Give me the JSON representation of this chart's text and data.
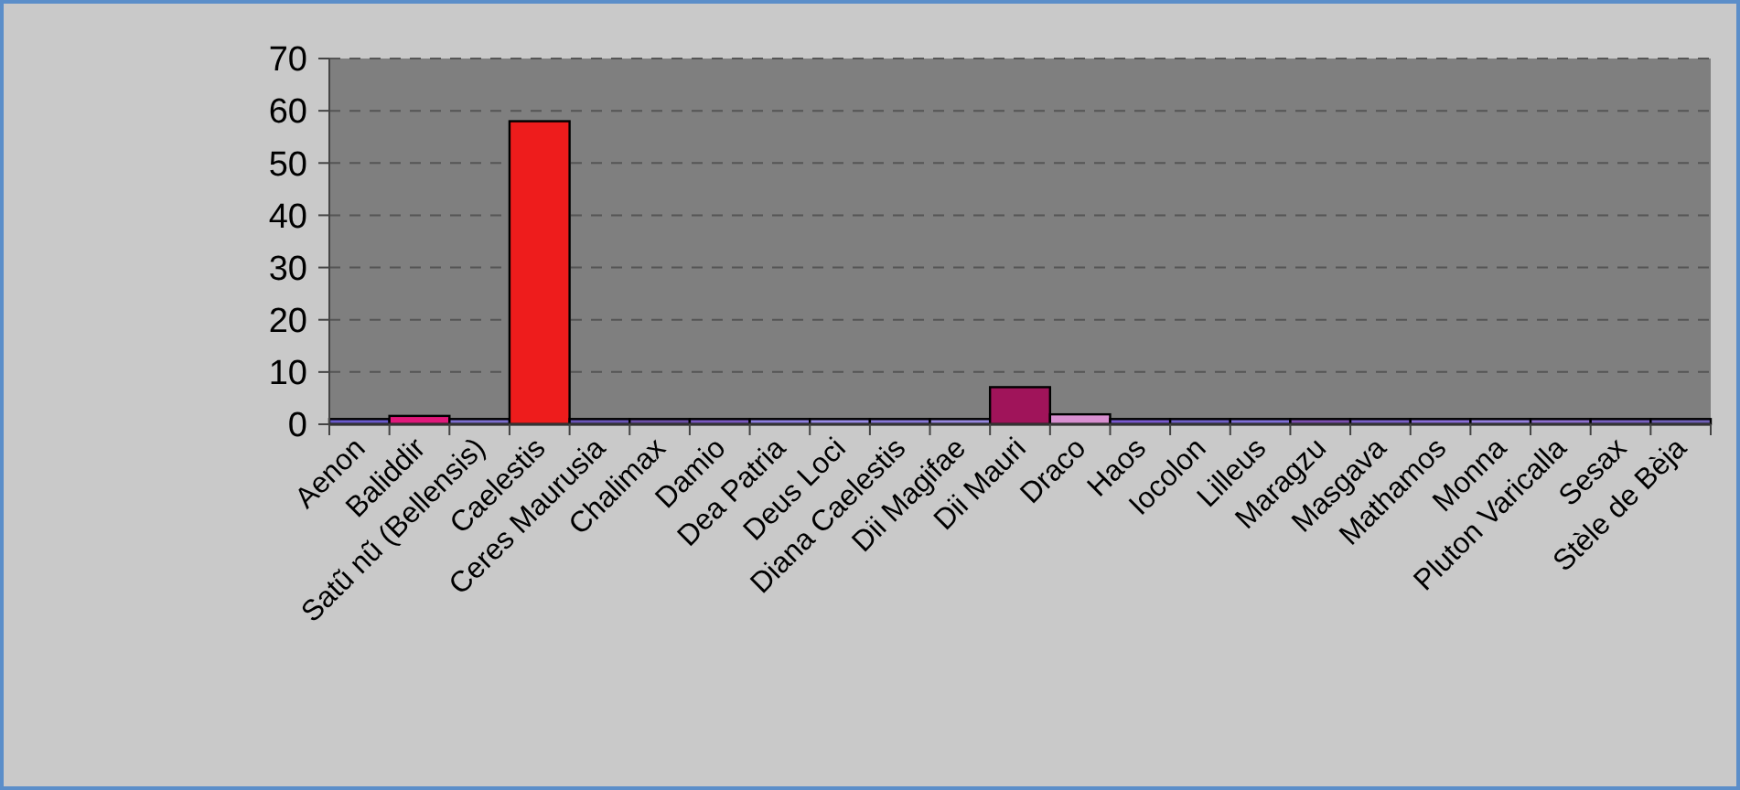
{
  "chart_data": {
    "type": "bar",
    "categories": [
      "Aenon",
      "Baliddir",
      "Satũ nũ (Bellensis)",
      "Caelestis",
      "Ceres Maurusia",
      "Chalimax",
      "Damio",
      "Dea Patria",
      "Deus Loci",
      "Diana Caelestis",
      "Dii Magifae",
      "Dii Mauri",
      "Draco",
      "Haos",
      "Iocolon",
      "Lilleus",
      "Maragzu",
      "Masgava",
      "Mathamos",
      "Monna",
      "Pluton Varicalla",
      "Sesax",
      "Stèle de Bèja"
    ],
    "values": [
      1,
      1.6,
      1,
      58,
      1,
      1,
      1,
      1,
      1,
      1,
      1,
      7.1,
      1.9,
      1,
      1,
      1,
      1,
      1,
      1,
      1,
      1,
      1,
      1
    ],
    "colors": [
      "#6a5acd",
      "#e0187a",
      "#7d6fd0",
      "#ee1c1c",
      "#6a55b8",
      "#6c4fa8",
      "#7a58c0",
      "#8e7fe0",
      "#9a8ce8",
      "#8878d8",
      "#9888e0",
      "#a0145a",
      "#d88fd0",
      "#7a5ad0",
      "#7060c8",
      "#8070d8",
      "#7c4fb0",
      "#7a60c8",
      "#8a6ed8",
      "#9680e0",
      "#8e70d0",
      "#7860c0",
      "#7060b8"
    ],
    "ylim": [
      0,
      70
    ],
    "yticks": [
      0,
      10,
      20,
      30,
      40,
      50,
      60,
      70
    ],
    "grid": "y"
  }
}
